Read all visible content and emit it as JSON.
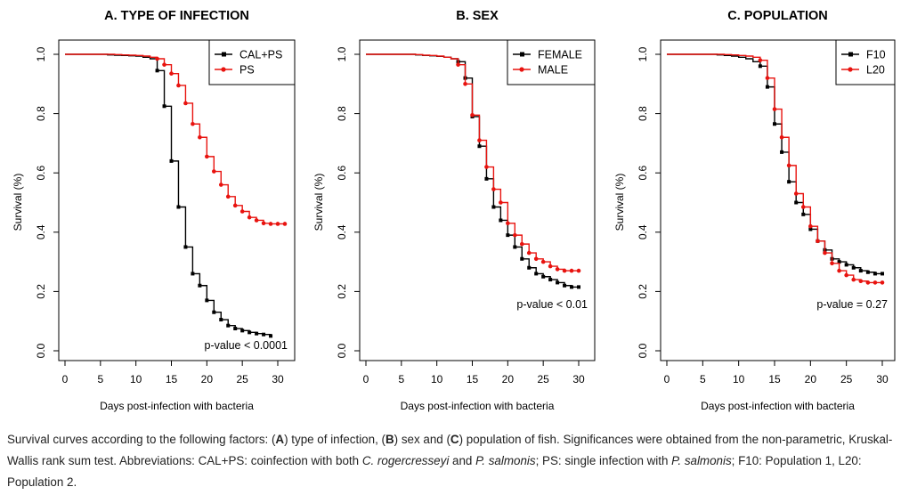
{
  "caption": {
    "parts": [
      {
        "t": "Survival curves according to the following factors: ("
      },
      {
        "t": "A",
        "b": true
      },
      {
        "t": ") type of infection, ("
      },
      {
        "t": "B",
        "b": true
      },
      {
        "t": ") sex and ("
      },
      {
        "t": "C",
        "b": true
      },
      {
        "t": ") population of fish. Significances were obtained from the non-parametric, Kruskal-Wallis rank sum test. Abbreviations: CAL+PS: coinfection with both "
      },
      {
        "t": "C. rogercresseyi",
        "i": true
      },
      {
        "t": " and "
      },
      {
        "t": "P. salmonis",
        "i": true
      },
      {
        "t": "; PS: single infection with "
      },
      {
        "t": "P. salmonis",
        "i": true
      },
      {
        "t": "; F10: Population 1, L20: Population 2."
      }
    ]
  },
  "chart_data": [
    {
      "type": "line",
      "title": "A. TYPE OF INFECTION",
      "xlabel": "Days post-infection with bacteria",
      "ylabel": "Survival (%)",
      "xlim": [
        0,
        31
      ],
      "ylim": [
        0,
        1
      ],
      "xticks": [
        "0",
        "5",
        "10",
        "15",
        "20",
        "25",
        "30"
      ],
      "yticks": [
        "0.0",
        "0.2",
        "0.4",
        "0.6",
        "0.8",
        "1.0"
      ],
      "legend_position": "top-right",
      "annotation": "p-value < 0.0001",
      "series": [
        {
          "name": "CAL+PS",
          "color": "#000000",
          "x": [
            0,
            1,
            2,
            3,
            4,
            5,
            6,
            7,
            8,
            9,
            10,
            11,
            12,
            13,
            14,
            15,
            16,
            17,
            18,
            19,
            20,
            21,
            22,
            23,
            24,
            25,
            26,
            27,
            28,
            29
          ],
          "y": [
            1.0,
            1.0,
            1.0,
            1.0,
            1.0,
            1.0,
            0.998,
            0.997,
            0.996,
            0.995,
            0.994,
            0.99,
            0.985,
            0.945,
            0.825,
            0.64,
            0.485,
            0.35,
            0.26,
            0.22,
            0.17,
            0.13,
            0.105,
            0.085,
            0.075,
            0.068,
            0.062,
            0.058,
            0.055,
            0.05
          ]
        },
        {
          "name": "PS",
          "color": "#e8130f",
          "x": [
            0,
            1,
            2,
            3,
            4,
            5,
            6,
            7,
            8,
            9,
            10,
            11,
            12,
            13,
            14,
            15,
            16,
            17,
            18,
            19,
            20,
            21,
            22,
            23,
            24,
            25,
            26,
            27,
            28,
            29,
            30,
            31
          ],
          "y": [
            1.0,
            1.0,
            1.0,
            1.0,
            1.0,
            1.0,
            1.0,
            0.999,
            0.998,
            0.997,
            0.996,
            0.994,
            0.99,
            0.985,
            0.965,
            0.935,
            0.895,
            0.835,
            0.765,
            0.72,
            0.655,
            0.605,
            0.56,
            0.52,
            0.49,
            0.47,
            0.45,
            0.44,
            0.43,
            0.428,
            0.428,
            0.428
          ]
        }
      ]
    },
    {
      "type": "line",
      "title": "B.  SEX",
      "xlabel": "Days post-infection with bacteria",
      "ylabel": "Survival (%)",
      "xlim": [
        0,
        31
      ],
      "ylim": [
        0,
        1
      ],
      "xticks": [
        "0",
        "5",
        "10",
        "15",
        "20",
        "25",
        "30"
      ],
      "yticks": [
        "0.0",
        "0.2",
        "0.4",
        "0.6",
        "0.8",
        "1.0"
      ],
      "legend_position": "top-right",
      "annotation": "p-value < 0.01",
      "series": [
        {
          "name": "FEMALE",
          "color": "#000000",
          "x": [
            0,
            1,
            2,
            3,
            4,
            5,
            6,
            7,
            8,
            9,
            10,
            11,
            12,
            13,
            14,
            15,
            16,
            17,
            18,
            19,
            20,
            21,
            22,
            23,
            24,
            25,
            26,
            27,
            28,
            29,
            30
          ],
          "y": [
            1.0,
            1.0,
            1.0,
            1.0,
            1.0,
            1.0,
            1.0,
            0.998,
            0.996,
            0.995,
            0.993,
            0.99,
            0.985,
            0.975,
            0.92,
            0.79,
            0.69,
            0.58,
            0.485,
            0.44,
            0.39,
            0.35,
            0.31,
            0.28,
            0.26,
            0.25,
            0.24,
            0.23,
            0.22,
            0.215,
            0.215
          ]
        },
        {
          "name": "MALE",
          "color": "#e8130f",
          "x": [
            0,
            1,
            2,
            3,
            4,
            5,
            6,
            7,
            8,
            9,
            10,
            11,
            12,
            13,
            14,
            15,
            16,
            17,
            18,
            19,
            20,
            21,
            22,
            23,
            24,
            25,
            26,
            27,
            28,
            29,
            30
          ],
          "y": [
            1.0,
            1.0,
            1.0,
            1.0,
            1.0,
            1.0,
            1.0,
            0.999,
            0.997,
            0.996,
            0.994,
            0.99,
            0.985,
            0.965,
            0.9,
            0.795,
            0.71,
            0.62,
            0.545,
            0.5,
            0.43,
            0.39,
            0.36,
            0.33,
            0.31,
            0.3,
            0.285,
            0.275,
            0.27,
            0.27,
            0.27
          ]
        }
      ]
    },
    {
      "type": "line",
      "title": "C. POPULATION",
      "xlabel": "Days post-infection with bacteria",
      "ylabel": "Survival (%)",
      "xlim": [
        0,
        31
      ],
      "ylim": [
        0,
        1
      ],
      "xticks": [
        "0",
        "5",
        "10",
        "15",
        "20",
        "25",
        "30"
      ],
      "yticks": [
        "0.0",
        "0.2",
        "0.4",
        "0.6",
        "0.8",
        "1.0"
      ],
      "legend_position": "top-right",
      "annotation": "p-value = 0.27",
      "series": [
        {
          "name": "F10",
          "color": "#000000",
          "x": [
            0,
            1,
            2,
            3,
            4,
            5,
            6,
            7,
            8,
            9,
            10,
            11,
            12,
            13,
            14,
            15,
            16,
            17,
            18,
            19,
            20,
            21,
            22,
            23,
            24,
            25,
            26,
            27,
            28,
            29,
            30
          ],
          "y": [
            1.0,
            1.0,
            1.0,
            1.0,
            1.0,
            1.0,
            1.0,
            0.998,
            0.996,
            0.994,
            0.99,
            0.985,
            0.975,
            0.96,
            0.89,
            0.765,
            0.67,
            0.57,
            0.5,
            0.46,
            0.41,
            0.37,
            0.34,
            0.31,
            0.3,
            0.29,
            0.28,
            0.27,
            0.265,
            0.26,
            0.26
          ]
        },
        {
          "name": "L20",
          "color": "#e8130f",
          "x": [
            0,
            1,
            2,
            3,
            4,
            5,
            6,
            7,
            8,
            9,
            10,
            11,
            12,
            13,
            14,
            15,
            16,
            17,
            18,
            19,
            20,
            21,
            22,
            23,
            24,
            25,
            26,
            27,
            28,
            29,
            30
          ],
          "y": [
            1.0,
            1.0,
            1.0,
            1.0,
            1.0,
            1.0,
            1.0,
            1.0,
            0.999,
            0.998,
            0.996,
            0.994,
            0.99,
            0.98,
            0.92,
            0.815,
            0.72,
            0.625,
            0.53,
            0.485,
            0.42,
            0.37,
            0.33,
            0.295,
            0.27,
            0.255,
            0.24,
            0.235,
            0.23,
            0.23,
            0.23
          ]
        }
      ]
    }
  ]
}
